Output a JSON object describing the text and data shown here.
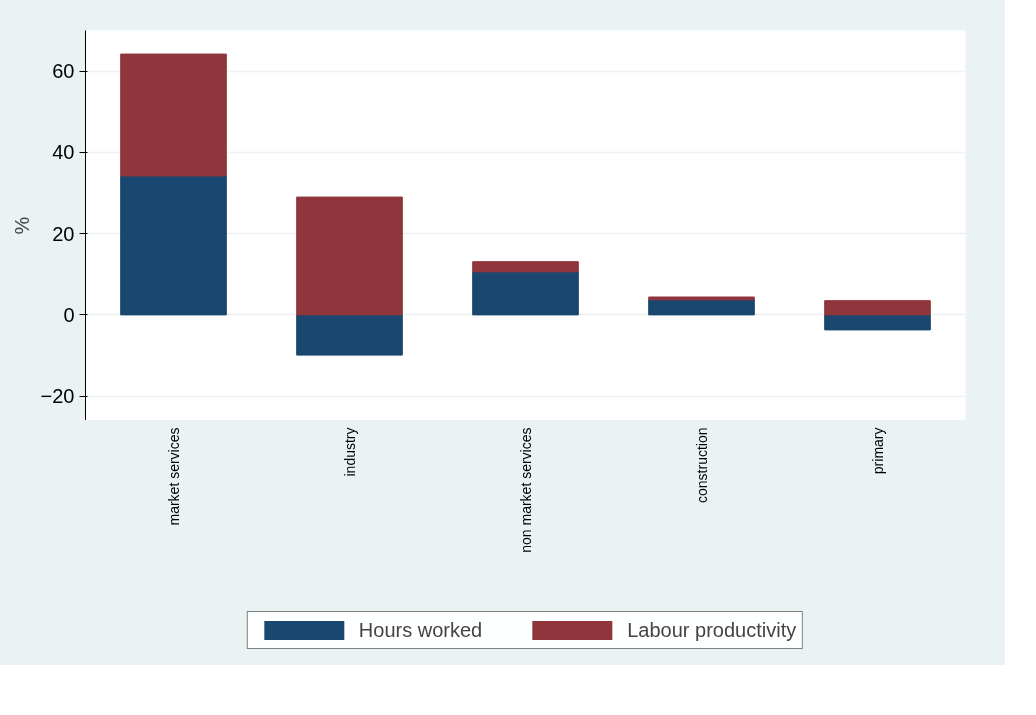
{
  "chart_data": {
    "type": "bar",
    "stacked": true,
    "ylabel": "%",
    "categories": [
      "market services",
      "industry",
      "non market services",
      "construction",
      "primary"
    ],
    "series": [
      {
        "name": "Hours worked",
        "color": "#1a476f",
        "values": [
          34.2,
          -9.9,
          10.6,
          3.7,
          -3.7
        ]
      },
      {
        "name": "Labour productivity",
        "color": "#90353b",
        "values": [
          30,
          29,
          2.5,
          0.7,
          3.5
        ]
      }
    ],
    "ylim": [
      -26,
      70
    ],
    "yticks": [
      -20,
      0,
      20,
      40,
      60
    ],
    "grid": "y",
    "legend": "bottom"
  }
}
